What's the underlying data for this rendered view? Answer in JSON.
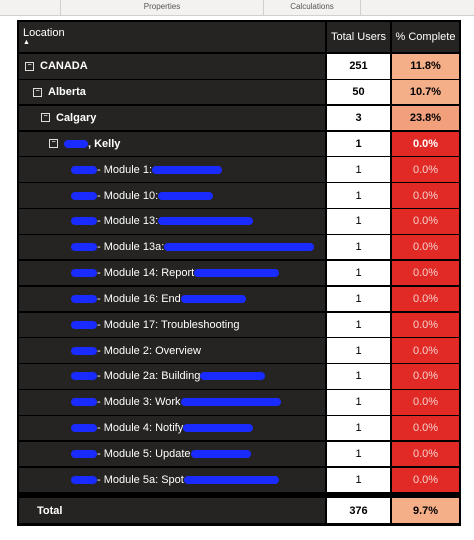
{
  "tabs": [
    "Properties",
    "Calculations"
  ],
  "table": {
    "headers": [
      "Location",
      "Total Users",
      "% Complete"
    ],
    "rows": [
      [
        "CANADA",
        "251",
        "11.8%"
      ],
      [
        "Alberta",
        "50",
        "10.7%"
      ],
      [
        "Calgary",
        "3",
        "23.8%"
      ],
      [
        ", Kelly",
        "1",
        "0.0%"
      ],
      [
        "- Module 1:",
        "1",
        "0.0%"
      ],
      [
        "- Module 10:",
        "1",
        "0.0%"
      ],
      [
        "- Module 13:",
        "1",
        "0.0%"
      ],
      [
        "- Module 13a:",
        "1",
        "0.0%"
      ],
      [
        "- Module 14: Report",
        "1",
        "0.0%"
      ],
      [
        "- Module 16: End",
        "1",
        "0.0%"
      ],
      [
        "- Module 17: Troubleshooting",
        "1",
        "0.0%"
      ],
      [
        "- Module 2: Overview",
        "1",
        "0.0%"
      ],
      [
        "- Module 2a: Building",
        "1",
        "0.0%"
      ],
      [
        "- Module 3: Work",
        "1",
        "0.0%"
      ],
      [
        "- Module 4: Notify",
        "1",
        "0.0%"
      ],
      [
        "- Module 5: Update",
        "1",
        "0.0%"
      ],
      [
        "- Module 5a: Spot",
        "1",
        "0.0%"
      ]
    ],
    "total": [
      "Total",
      "376",
      "9.7%"
    ]
  }
}
